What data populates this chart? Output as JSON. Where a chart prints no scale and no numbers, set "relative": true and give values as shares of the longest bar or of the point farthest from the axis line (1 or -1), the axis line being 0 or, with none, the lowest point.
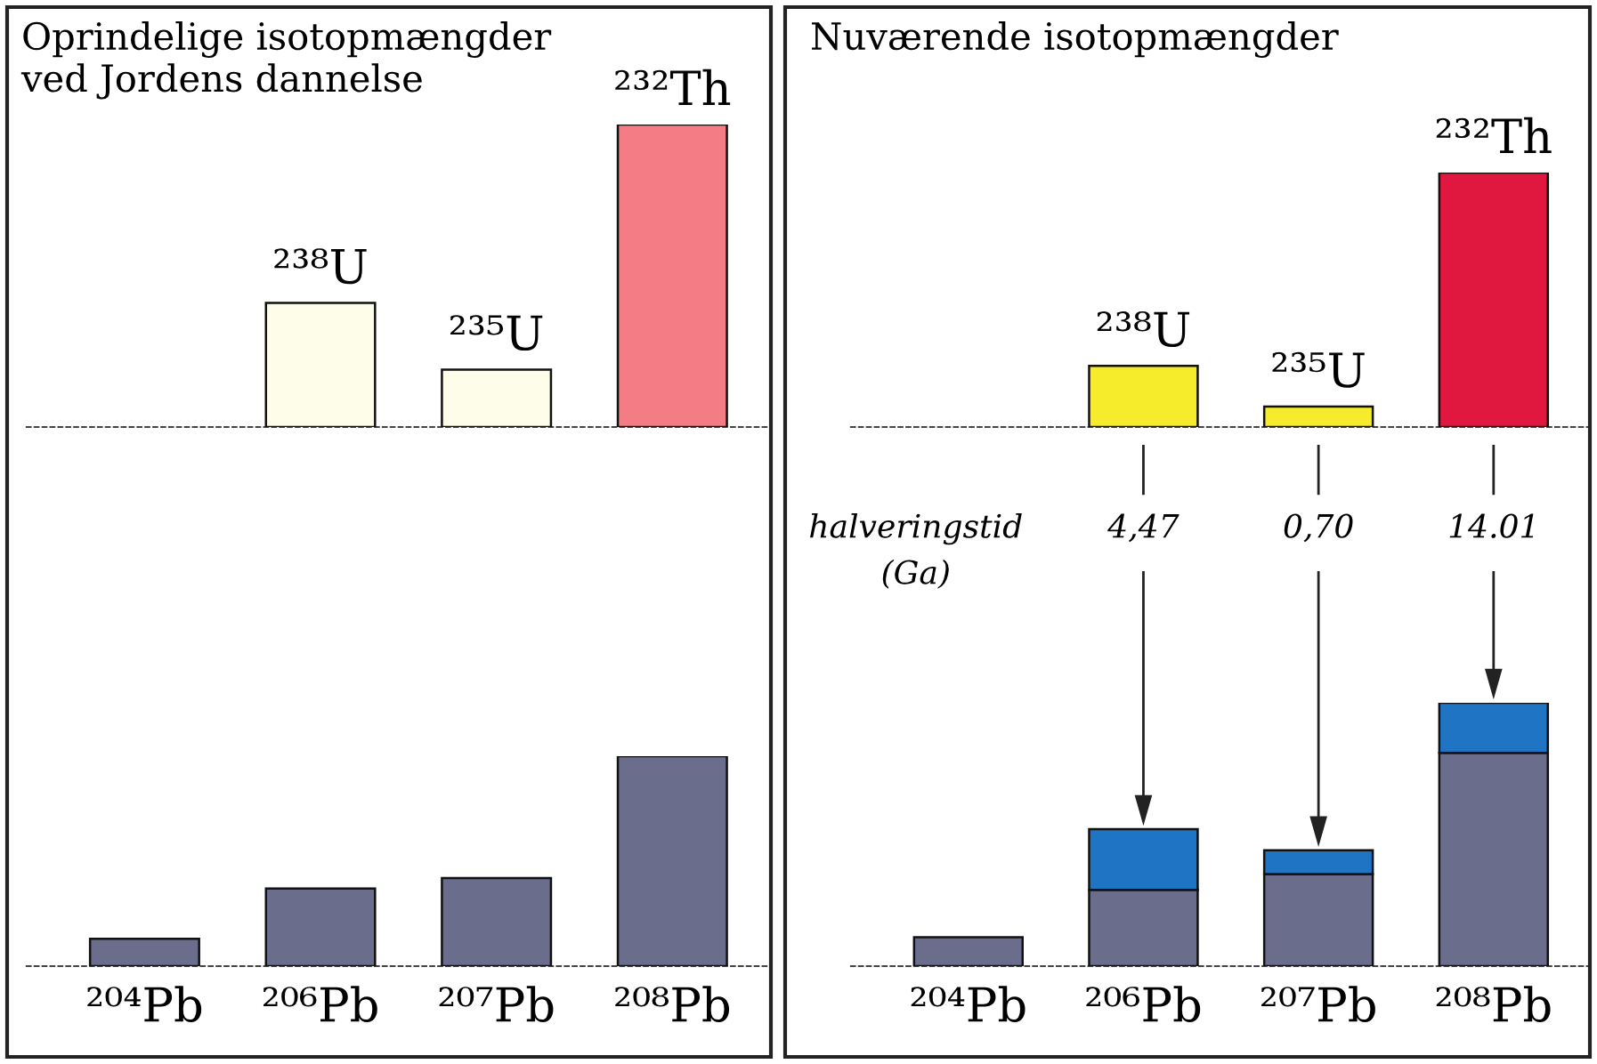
{
  "chart_data": [
    {
      "type": "bar",
      "title": "Oprindelige isotopmængder\nved Jordens dannelse",
      "relative": true,
      "categories": [
        null,
        null,
        null
      ],
      "values": [
        0.41,
        0.19,
        1
      ],
      "colors": [
        "#fdfde9",
        "#fdfde9",
        "#f47c84"
      ],
      "annotations": [
        {
          "text": "²³⁸U",
          "y": 0.41
        },
        {
          "text": "²³⁵U",
          "y": 0.19
        },
        {
          "text": "²³²Th",
          "y": 1
        }
      ]
    },
    {
      "type": "bar",
      "relative": true,
      "categories": [
        "²⁰⁴Pb",
        "²⁰⁶Pb",
        "²⁰⁷Pb",
        "²⁰⁸Pb"
      ],
      "values": [
        0.13,
        0.37,
        0.42,
        1
      ],
      "color": "#6a6d8c"
    },
    {
      "type": "bar",
      "title": "Nuværende isotopmængder",
      "relative": true,
      "categories": [
        null,
        null,
        null
      ],
      "values": [
        0.24,
        0.08,
        1
      ],
      "colors": [
        "#f7ec2c",
        "#f7ec2c",
        "#e0173f"
      ],
      "annotations": [
        {
          "text": "²³⁸U",
          "y": 0.24
        },
        {
          "text": "²³⁵U",
          "y": 0.08
        },
        {
          "text": "²³²Th",
          "y": 1
        }
      ]
    },
    {
      "type": "bar",
      "relative": true,
      "stacked": true,
      "categories": [
        "²⁰⁴Pb",
        "²⁰⁶Pb",
        "²⁰⁷Pb",
        "²⁰⁸Pb"
      ],
      "annotations": [
        "halveringstid\n(Ga)",
        "4,47",
        "0,70",
        "14.01"
      ],
      "series": [
        {
          "color": "#6a6d8c",
          "values": [
            0.11,
            0.29,
            0.35,
            0.81
          ]
        },
        {
          "color": "#1f74c4",
          "values": [
            null,
            0.23,
            0.09,
            0.19
          ]
        }
      ]
    }
  ]
}
